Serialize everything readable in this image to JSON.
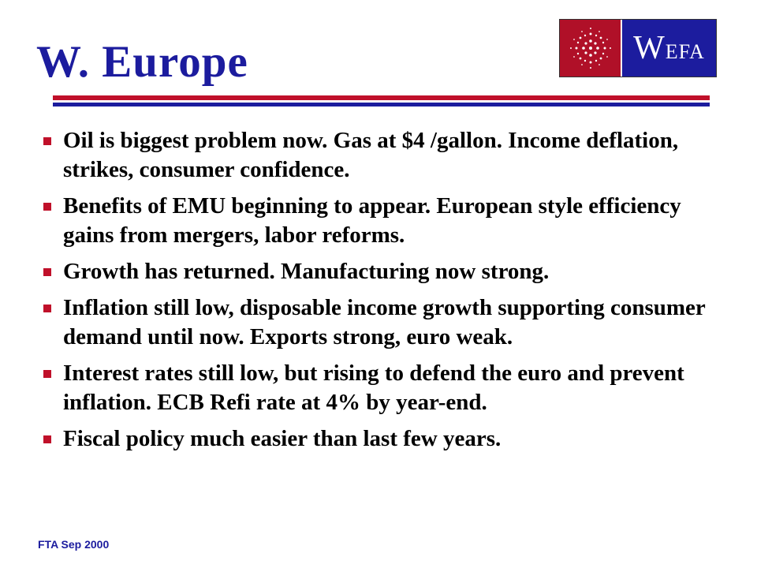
{
  "title": "W. Europe",
  "logo": {
    "initial": "W",
    "rest": "EFA",
    "icon": "sunburst-dots-icon"
  },
  "bullets": [
    "Oil is biggest problem now. Gas at $4 /gallon. Income deflation, strikes, consumer confidence.",
    "Benefits of EMU beginning to appear. European style efficiency gains from mergers, labor reforms.",
    "Growth has returned. Manufacturing now strong.",
    "Inflation still low, disposable income growth supporting consumer demand until now. Exports strong, euro weak.",
    "Interest rates still low, but rising to defend the euro and prevent inflation. ECB Refi rate at 4% by year-end.",
    "Fiscal policy much easier than last few years."
  ],
  "footer": "FTA Sep 2000",
  "colors": {
    "title": "#1c1c9e",
    "accent_red": "#c0102a",
    "logo_red": "#b01028",
    "logo_blue": "#1c1c9e"
  }
}
